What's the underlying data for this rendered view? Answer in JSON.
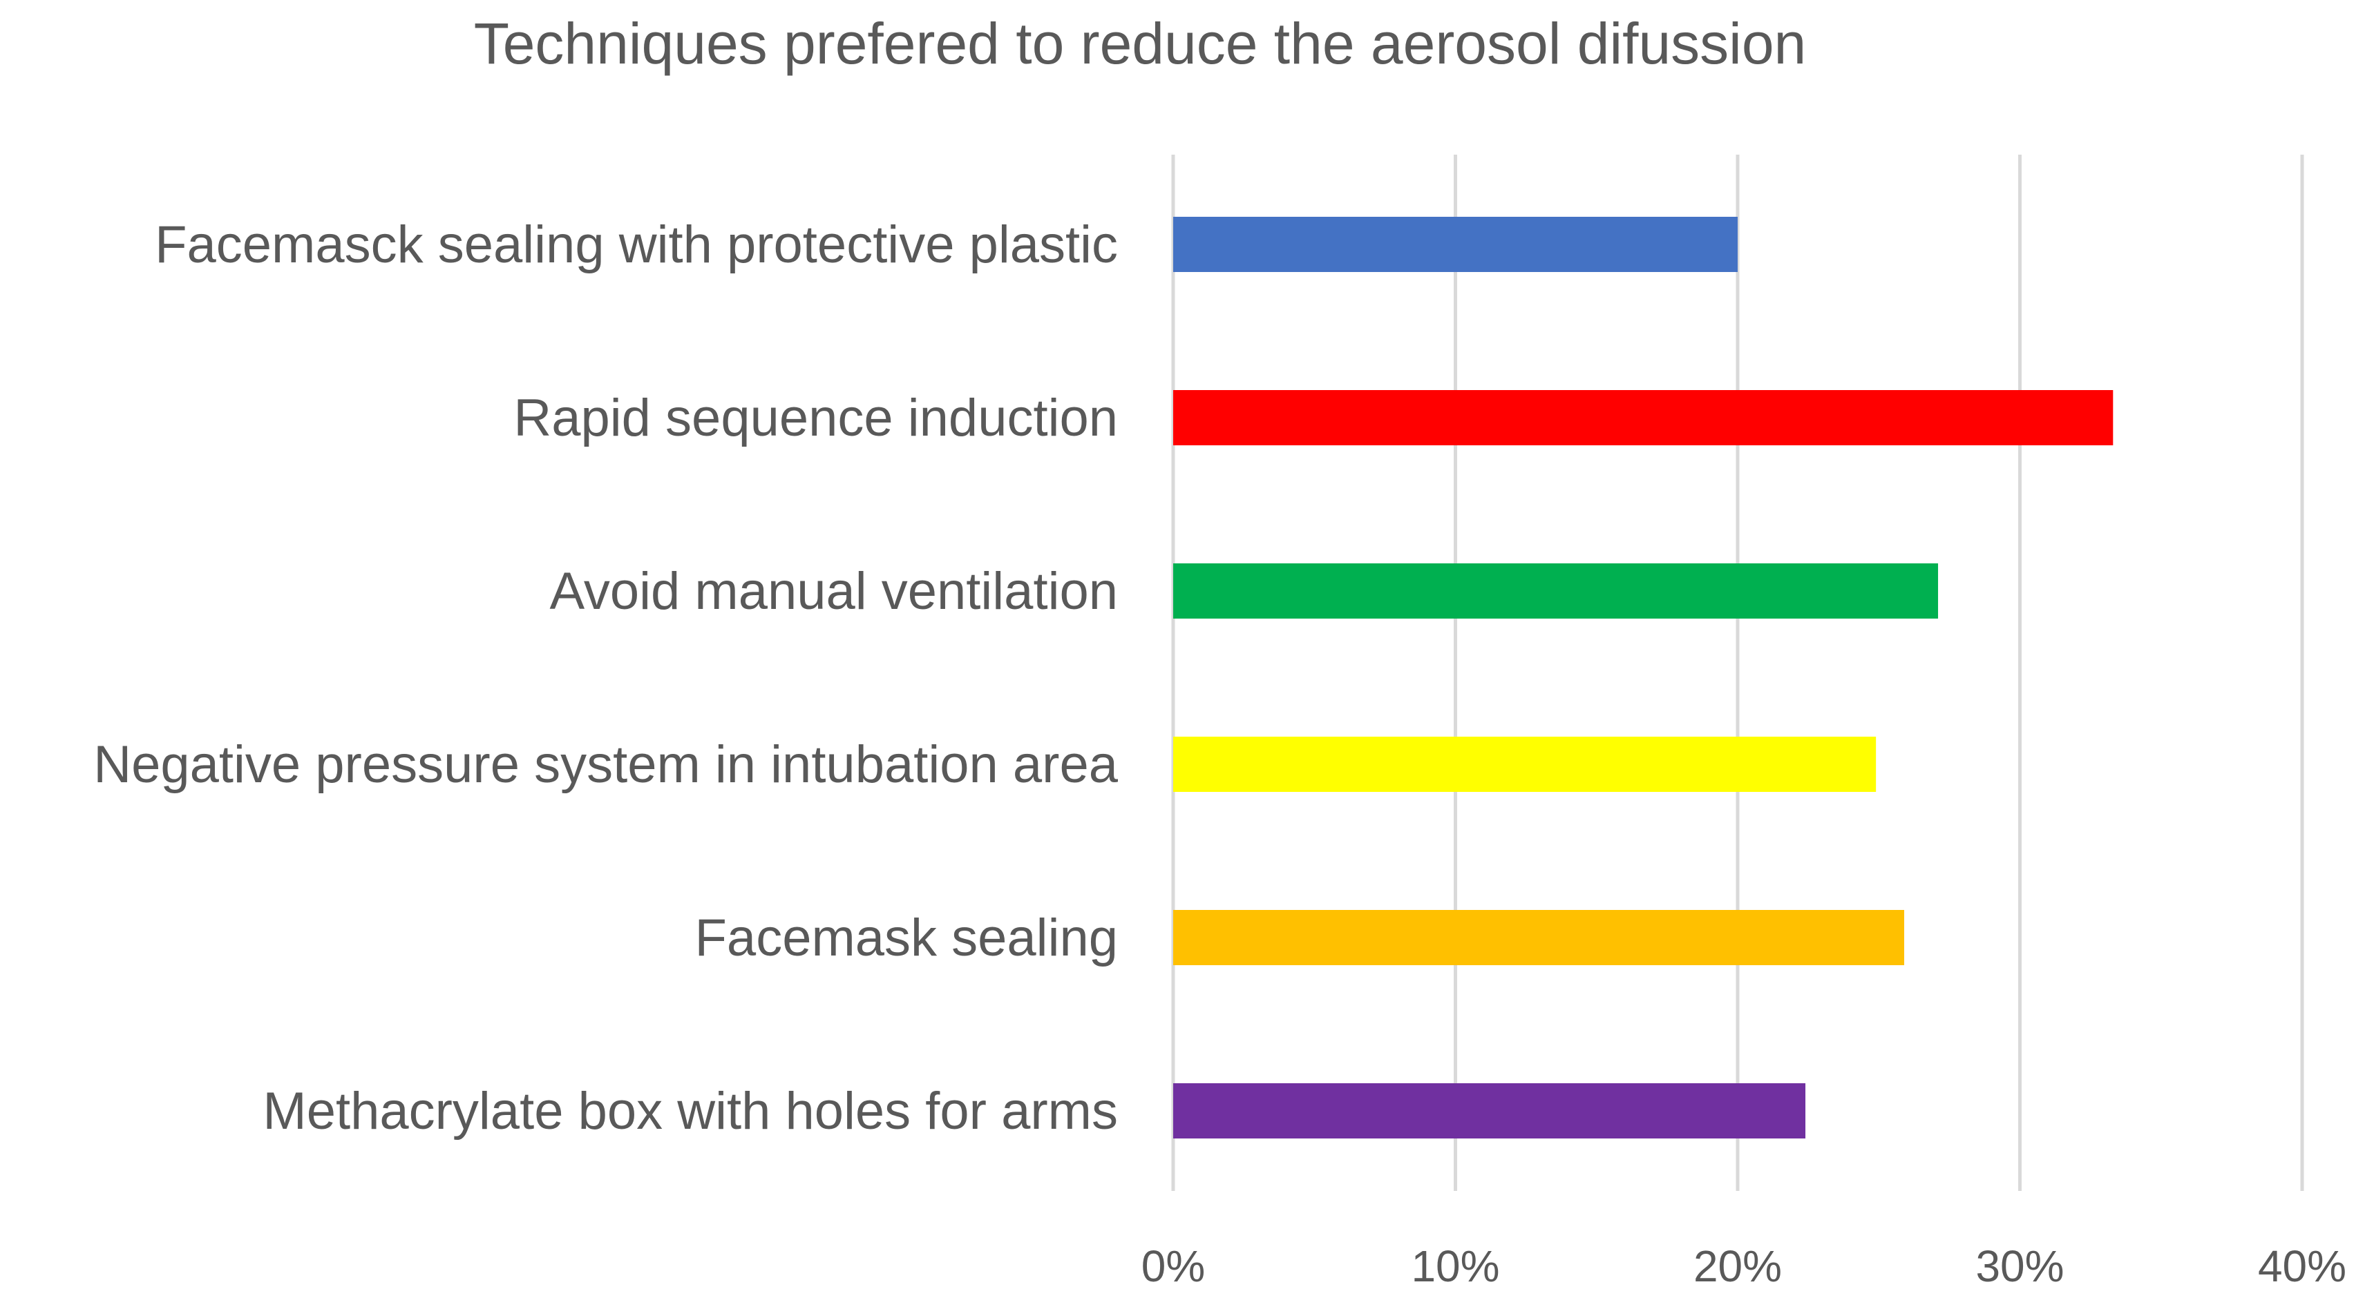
{
  "chart_data": {
    "type": "bar",
    "orientation": "horizontal",
    "title": "Techniques prefered to reduce the aerosol difussion",
    "xlabel": "",
    "ylabel": "",
    "categories": [
      "Facemasck sealing with protective plastic",
      "Rapid sequence induction",
      "Avoid manual ventilation",
      "Negative pressure system in intubation area",
      "Facemask sealing",
      "Methacrylate box with holes for arms"
    ],
    "values": [
      20.0,
      33.3,
      27.1,
      24.9,
      25.9,
      22.4
    ],
    "colors": [
      "#4472C4",
      "#FF0000",
      "#00B050",
      "#FFFF00",
      "#FFC000",
      "#7030A0"
    ],
    "xlim": [
      0,
      40
    ],
    "ticks": [
      0,
      10,
      20,
      30,
      40
    ],
    "tick_labels": [
      "0%",
      "10%",
      "20%",
      "30%",
      "40%"
    ],
    "grid": true,
    "legend": "none"
  }
}
